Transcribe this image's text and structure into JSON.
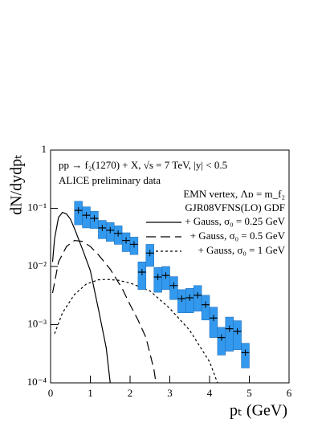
{
  "chart_data": {
    "type": "line",
    "title": "pp → f₂(1270) + X,  √s = 7 TeV,  |y| < 0.5",
    "annotations": [
      "EMN vertex, Λᴅ = m_f₂",
      "GJR08VFNS(LO) GDF"
    ],
    "xlabel": "pₜ (GeV)",
    "ylabel": "dN/dydpₜ",
    "xlim": [
      0,
      6
    ],
    "ylim": [
      0.0001,
      1
    ],
    "log_y": true,
    "xticks": [
      0,
      1,
      2,
      3,
      4,
      5,
      6
    ],
    "yticks": [
      {
        "value": 0.0001,
        "label": "10⁻⁴"
      },
      {
        "value": 0.001,
        "label": "10⁻³"
      },
      {
        "value": 0.01,
        "label": "10⁻²"
      },
      {
        "value": 0.1,
        "label": "10⁻¹"
      },
      1
    ],
    "data": {
      "name": "ALICE preliminary data",
      "color": "#3399ee",
      "bin_width": 0.2,
      "x": [
        0.7,
        0.9,
        1.1,
        1.3,
        1.5,
        1.7,
        1.9,
        2.1,
        2.3,
        2.5,
        2.7,
        2.9,
        3.1,
        3.3,
        3.5,
        3.7,
        3.9,
        4.1,
        4.3,
        4.5,
        4.7,
        4.9
      ],
      "values": [
        0.092,
        0.076,
        0.067,
        0.046,
        0.042,
        0.037,
        0.028,
        0.024,
        0.008,
        0.017,
        0.0066,
        0.007,
        0.0047,
        0.0028,
        0.0029,
        0.0032,
        0.0022,
        0.0013,
        0.0006,
        0.00085,
        0.00077,
        0.00033
      ],
      "errors": [
        0.04,
        0.03,
        0.022,
        0.016,
        0.015,
        0.013,
        0.01,
        0.008,
        0.004,
        0.007,
        0.003,
        0.003,
        0.002,
        0.0012,
        0.0013,
        0.0015,
        0.001,
        0.0007,
        0.0003,
        0.0005,
        0.0004,
        0.00015
      ]
    },
    "series": [
      {
        "name": "+ Gauss, σ₀ = 0.25 GeV",
        "color": "#000000",
        "dash": "none",
        "x": [
          0.05,
          0.1,
          0.2,
          0.3,
          0.4,
          0.5,
          0.6,
          0.8,
          1.0,
          1.2,
          1.4,
          1.5
        ],
        "values": [
          0.012,
          0.03,
          0.07,
          0.085,
          0.08,
          0.065,
          0.045,
          0.02,
          0.0085,
          0.0019,
          0.0004,
          0.0001
        ]
      },
      {
        "name": "+ Gauss, σ₀ = 0.5 GeV",
        "color": "#000000",
        "dash": "12 6",
        "x": [
          0.05,
          0.2,
          0.4,
          0.6,
          0.8,
          1.0,
          1.2,
          1.5,
          1.8,
          2.0,
          2.2,
          2.4,
          2.6,
          2.65
        ],
        "values": [
          0.0035,
          0.012,
          0.022,
          0.028,
          0.027,
          0.022,
          0.016,
          0.009,
          0.0042,
          0.0022,
          0.0012,
          0.0006,
          0.00017,
          0.0001
        ]
      },
      {
        "name": "+ Gauss, σ₀ = 1 GeV",
        "color": "#000000",
        "dash": "3 3",
        "x": [
          0.1,
          0.3,
          0.6,
          0.9,
          1.2,
          1.4,
          1.7,
          2.0,
          2.5,
          3.0,
          3.5,
          4.0,
          4.2
        ],
        "values": [
          0.0007,
          0.0016,
          0.0033,
          0.005,
          0.0059,
          0.006,
          0.0058,
          0.0052,
          0.0038,
          0.0019,
          0.0008,
          0.00023,
          0.0001
        ]
      }
    ]
  }
}
